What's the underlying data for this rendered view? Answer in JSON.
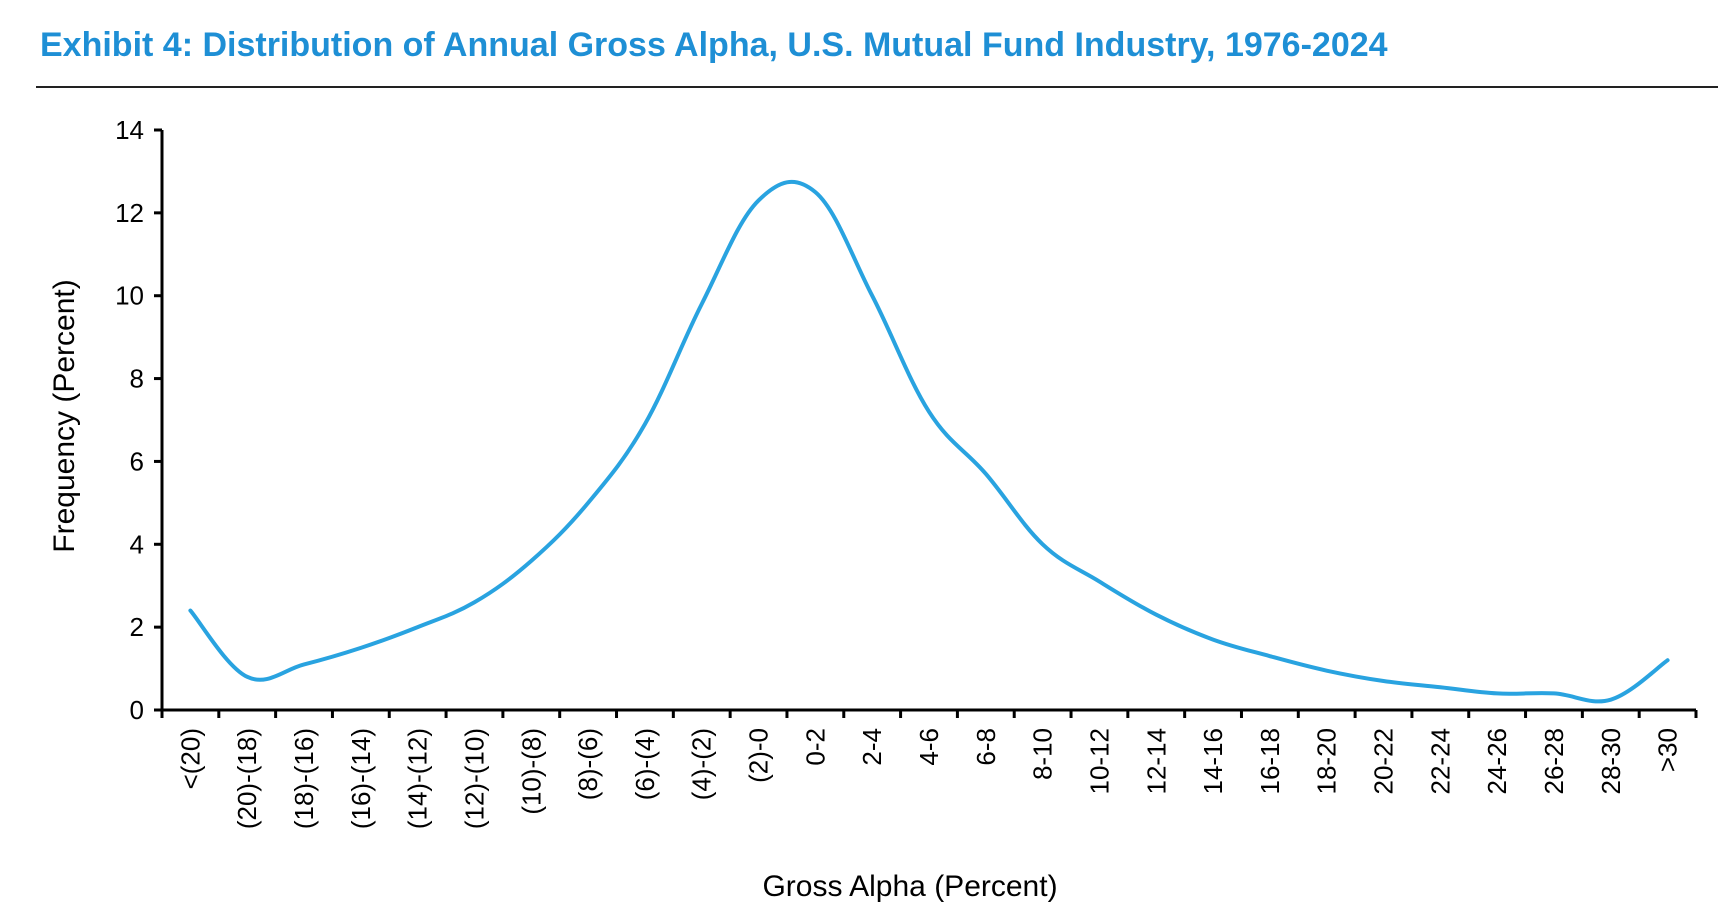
{
  "chart_data": {
    "type": "line",
    "title": "Exhibit 4: Distribution of Annual Gross Alpha, U.S. Mutual Fund Industry, 1976-2024",
    "xlabel": "Gross Alpha (Percent)",
    "ylabel": "Frequency (Percent)",
    "ylim": [
      0,
      14
    ],
    "yticks": [
      0,
      2,
      4,
      6,
      8,
      10,
      12,
      14
    ],
    "categories": [
      "<(20)",
      "(20)-(18)",
      "(18)-(16)",
      "(16)-(14)",
      "(14)-(12)",
      "(12)-(10)",
      "(10)-(8)",
      "(8)-(6)",
      "(6)-(4)",
      "(4)-(2)",
      "(2)-0",
      "0-2",
      "2-4",
      "4-6",
      "6-8",
      "8-10",
      "10-12",
      "12-14",
      "14-16",
      "16-18",
      "18-20",
      "20-22",
      "22-24",
      "24-26",
      "26-28",
      "28-30",
      ">30"
    ],
    "series": [
      {
        "name": "Frequency",
        "color": "#29A3E0",
        "smooth": true,
        "values": [
          2.4,
          0.8,
          1.1,
          1.5,
          2.0,
          2.6,
          3.6,
          5.0,
          6.9,
          9.8,
          12.3,
          12.5,
          10.0,
          7.2,
          5.7,
          4.0,
          3.1,
          2.3,
          1.7,
          1.3,
          0.95,
          0.7,
          0.55,
          0.4,
          0.4,
          0.25,
          1.2
        ]
      }
    ],
    "grid": false,
    "legend": "none"
  }
}
